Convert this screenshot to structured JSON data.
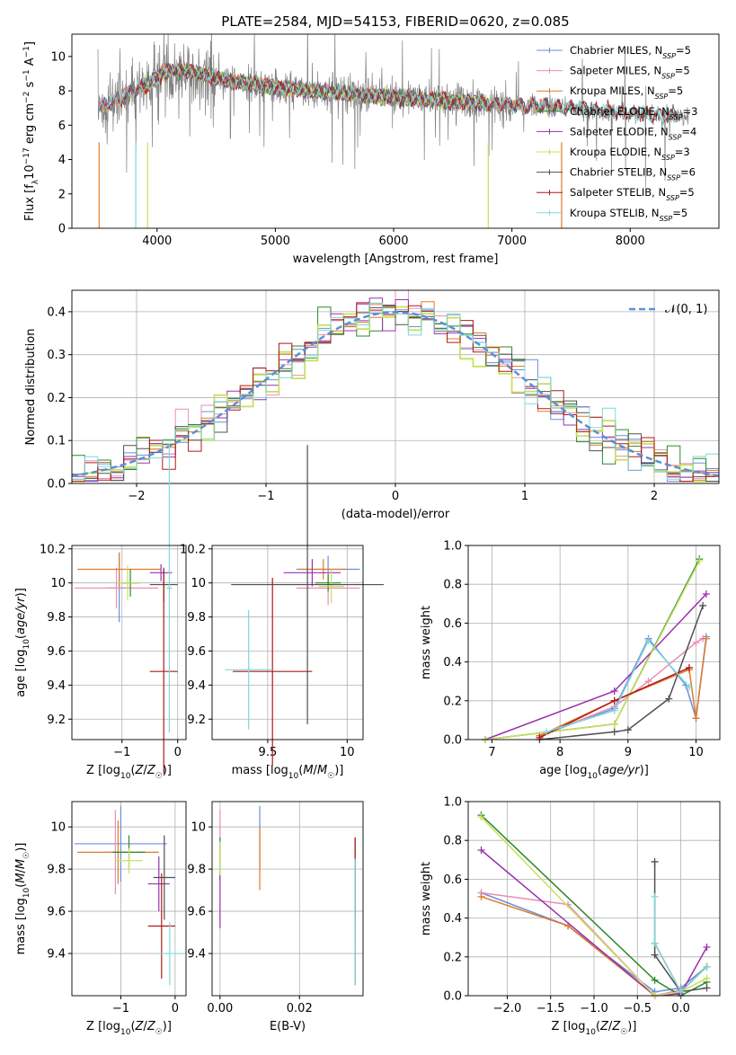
{
  "title": "PLATE=2584, MJD=54153, FIBERID=0620, z=0.085",
  "colors": {
    "Chabrier MILES": "#6a8fd8",
    "Salpeter MILES": "#e88fb8",
    "Kroupa MILES": "#e07a2a",
    "Chabrier ELODIE": "#2a8a2a",
    "Salpeter ELODIE": "#9b30b0",
    "Kroupa ELODIE": "#c8e060",
    "Chabrier STELIB": "#505050",
    "Salpeter STELIB": "#b01818",
    "Kroupa STELIB": "#80d8d8"
  },
  "chart_data": [
    {
      "id": "spectrum",
      "type": "line",
      "xlabel": "wavelength [Angstrom, rest frame]",
      "ylabel": "Flux [f_λ10^-17 erg cm^-2 s^-1 A^-1]",
      "xlim": [
        3280,
        8750
      ],
      "ylim": [
        0,
        11.3
      ],
      "xticks": [
        4000,
        5000,
        6000,
        7000,
        8000
      ],
      "yticks": [
        0,
        2,
        4,
        6,
        8,
        10
      ],
      "legend_position": "top-right",
      "legend": [
        {
          "model": "Chabrier MILES",
          "nssp": "5"
        },
        {
          "model": "Salpeter MILES",
          "nssp": "5"
        },
        {
          "model": "Kroupa MILES",
          "nssp": "5"
        },
        {
          "model": "Chabrier ELODIE",
          "nssp": "3"
        },
        {
          "model": "Salpeter ELODIE",
          "nssp": "4"
        },
        {
          "model": "Kroupa ELODIE",
          "nssp": "3"
        },
        {
          "model": "Chabrier STELIB",
          "nssp": "6"
        },
        {
          "model": "Salpeter STELIB",
          "nssp": "5"
        },
        {
          "model": "Kroupa STELIB",
          "nssp": "5"
        }
      ],
      "continuum": {
        "wavelength": [
          3500,
          3700,
          3900,
          4100,
          4300,
          4600,
          5000,
          5500,
          6000,
          6500,
          7000,
          7500,
          8000,
          8500
        ],
        "flux": [
          7.0,
          7.6,
          8.3,
          9.2,
          9.1,
          8.6,
          8.2,
          7.9,
          7.6,
          7.4,
          7.2,
          7.0,
          6.7,
          6.5
        ]
      }
    },
    {
      "id": "residuals",
      "type": "bar",
      "xlabel": "(data-model)/error",
      "ylabel": "Normed distribution",
      "xlim": [
        -2.5,
        2.5
      ],
      "ylim": [
        0,
        0.45
      ],
      "xticks": [
        -2,
        -1,
        0,
        1,
        2
      ],
      "yticks": [
        0.0,
        0.1,
        0.2,
        0.3,
        0.4
      ],
      "legend_position": "top-right",
      "normal_label": "𝒩(0, 1)",
      "normal_color": "#5b8fd8"
    },
    {
      "id": "age-Z",
      "type": "scatter",
      "xlabel": "Z [log₁₀(Z/Z☉)]",
      "ylabel": "age  [log₁₀(age/yr)]",
      "xlim": [
        -1.9,
        0.15
      ],
      "ylim": [
        9.08,
        10.22
      ],
      "xticks": [
        -1,
        0
      ],
      "yticks": [
        9.2,
        9.4,
        9.6,
        9.8,
        10.0,
        10.2
      ],
      "points": [
        {
          "model": "Chabrier MILES",
          "x": -1.05,
          "xerr": 0.2,
          "y": 9.97,
          "yerr": 0.2
        },
        {
          "model": "Salpeter MILES",
          "x": -1.1,
          "xerr": 0.75,
          "y": 9.97,
          "yerr": 0.12
        },
        {
          "model": "Kroupa MILES",
          "x": -1.05,
          "xerr": 0.75,
          "y": 10.08,
          "yerr": 0.1
        },
        {
          "model": "Chabrier ELODIE",
          "x": -0.85,
          "xerr": 0.15,
          "y": 10.0,
          "yerr": 0.08
        },
        {
          "model": "Salpeter ELODIE",
          "x": -0.3,
          "xerr": 0.2,
          "y": 10.06,
          "yerr": 0.05
        },
        {
          "model": "Kroupa ELODIE",
          "x": -0.9,
          "xerr": 0.2,
          "y": 10.0,
          "yerr": 0.1
        },
        {
          "model": "Chabrier STELIB",
          "x": -0.25,
          "xerr": 0.25,
          "y": 9.99,
          "yerr": 0.1
        },
        {
          "model": "Salpeter STELIB",
          "x": -0.25,
          "xerr": 0.25,
          "y": 9.48,
          "yerr": 0.6
        },
        {
          "model": "Kroupa STELIB",
          "x": -0.15,
          "xerr": 0.05,
          "y": 9.97,
          "yerr": 0.85
        }
      ]
    },
    {
      "id": "age-mass",
      "type": "scatter",
      "xlabel": "mass [log₁₀(M/M☉)]",
      "ylabel": "",
      "xlim": [
        9.15,
        10.1
      ],
      "ylim": [
        9.08,
        10.22
      ],
      "xticks": [
        9.5,
        10.0
      ],
      "yticks": [
        9.2,
        9.4,
        9.6,
        9.8,
        10.0,
        10.2
      ],
      "points": [
        {
          "model": "Chabrier MILES",
          "x": 9.88,
          "xerr": 0.2,
          "y": 10.08,
          "yerr": 0.08
        },
        {
          "model": "Salpeter MILES",
          "x": 9.88,
          "xerr": 0.2,
          "y": 9.97,
          "yerr": 0.1
        },
        {
          "model": "Kroupa MILES",
          "x": 9.85,
          "xerr": 0.15,
          "y": 10.08,
          "yerr": 0.06
        },
        {
          "model": "Chabrier ELODIE",
          "x": 9.88,
          "xerr": 0.08,
          "y": 10.0,
          "yerr": 0.05
        },
        {
          "model": "Salpeter ELODIE",
          "x": 9.78,
          "xerr": 0.18,
          "y": 10.06,
          "yerr": 0.08
        },
        {
          "model": "Kroupa ELODIE",
          "x": 9.9,
          "xerr": 0.08,
          "y": 9.98,
          "yerr": 0.1
        },
        {
          "model": "Chabrier STELIB",
          "x": 9.75,
          "xerr": 0.48,
          "y": 9.99,
          "yerr": 0.82
        },
        {
          "model": "Salpeter STELIB",
          "x": 9.53,
          "xerr": 0.25,
          "y": 9.48,
          "yerr": 0.55
        },
        {
          "model": "Kroupa STELIB",
          "x": 9.38,
          "xerr": 0.15,
          "y": 9.49,
          "yerr": 0.35
        }
      ]
    },
    {
      "id": "weight-age",
      "type": "line",
      "xlabel": "age  [log₁₀(age/yr)]",
      "ylabel": "mass weight",
      "xlim": [
        6.65,
        10.35
      ],
      "ylim": [
        0,
        1.0
      ],
      "xticks": [
        7,
        8,
        9,
        10
      ],
      "yticks": [
        0.0,
        0.2,
        0.4,
        0.6,
        0.8,
        1.0
      ],
      "series": [
        {
          "model": "Chabrier MILES",
          "x": [
            7.7,
            8.8,
            9.3,
            9.85,
            10.0,
            10.15
          ],
          "y": [
            0.02,
            0.16,
            0.52,
            0.28,
            0.11,
            0.53
          ]
        },
        {
          "model": "Salpeter MILES",
          "x": [
            7.7,
            8.8,
            9.3,
            10.0,
            10.1
          ],
          "y": [
            0.02,
            0.17,
            0.3,
            0.5,
            0.52
          ]
        },
        {
          "model": "Kroupa MILES",
          "x": [
            7.7,
            8.8,
            9.9,
            10.0,
            10.15
          ],
          "y": [
            0.02,
            0.2,
            0.36,
            0.11,
            0.52
          ]
        },
        {
          "model": "Chabrier ELODIE",
          "x": [
            6.9,
            8.8,
            10.05
          ],
          "y": [
            0.0,
            0.08,
            0.93
          ]
        },
        {
          "model": "Salpeter ELODIE",
          "x": [
            6.9,
            8.8,
            10.15
          ],
          "y": [
            0.0,
            0.25,
            0.75
          ]
        },
        {
          "model": "Kroupa ELODIE",
          "x": [
            6.9,
            8.8,
            10.05
          ],
          "y": [
            0.0,
            0.08,
            0.92
          ]
        },
        {
          "model": "Chabrier STELIB",
          "x": [
            7.7,
            8.8,
            9.0,
            9.6,
            10.1
          ],
          "y": [
            0.0,
            0.04,
            0.05,
            0.21,
            0.69
          ]
        },
        {
          "model": "Salpeter STELIB",
          "x": [
            7.7,
            8.8,
            9.9
          ],
          "y": [
            0.01,
            0.2,
            0.37
          ]
        },
        {
          "model": "Kroupa STELIB",
          "x": [
            7.8,
            8.8,
            9.3,
            9.9
          ],
          "y": [
            0.04,
            0.15,
            0.51,
            0.27
          ]
        }
      ]
    },
    {
      "id": "mass-Z",
      "type": "scatter",
      "xlabel": "Z [log₁₀(Z/Z☉)]",
      "ylabel": "mass [log₁₀(M/M☉)]",
      "xlim": [
        -1.9,
        0.2
      ],
      "ylim": [
        9.2,
        10.12
      ],
      "xticks": [
        -1,
        0
      ],
      "yticks": [
        9.4,
        9.6,
        9.8,
        10.0
      ],
      "points": [
        {
          "model": "Chabrier MILES",
          "x": -1.0,
          "xerr": 0.85,
          "y": 9.92,
          "yerr": 0.18
        },
        {
          "model": "Salpeter MILES",
          "x": -1.1,
          "xerr": 0.2,
          "y": 9.88,
          "yerr": 0.2
        },
        {
          "model": "Kroupa MILES",
          "x": -1.05,
          "xerr": 0.75,
          "y": 9.88,
          "yerr": 0.15
        },
        {
          "model": "Chabrier ELODIE",
          "x": -0.85,
          "xerr": 0.3,
          "y": 9.88,
          "yerr": 0.08
        },
        {
          "model": "Salpeter ELODIE",
          "x": -0.3,
          "xerr": 0.2,
          "y": 9.73,
          "yerr": 0.13
        },
        {
          "model": "Kroupa ELODIE",
          "x": -0.85,
          "xerr": 0.25,
          "y": 9.84,
          "yerr": 0.06
        },
        {
          "model": "Chabrier STELIB",
          "x": -0.2,
          "xerr": 0.2,
          "y": 9.76,
          "yerr": 0.2
        },
        {
          "model": "Salpeter STELIB",
          "x": -0.25,
          "xerr": 0.25,
          "y": 9.53,
          "yerr": 0.25
        },
        {
          "model": "Kroupa STELIB",
          "x": -0.1,
          "xerr": 0.25,
          "y": 9.4,
          "yerr": 0.15
        }
      ]
    },
    {
      "id": "mass-ebv",
      "type": "scatter",
      "xlabel": "E(B-V)",
      "ylabel": "",
      "xlim": [
        -0.002,
        0.036
      ],
      "ylim": [
        9.2,
        10.12
      ],
      "xticks": [
        0.0,
        0.02
      ],
      "yticks": [
        9.4,
        9.6,
        9.8,
        10.0
      ],
      "points": [
        {
          "model": "Chabrier MILES",
          "x": 0.01,
          "xerr": 0.0,
          "y": 9.95,
          "yerr": 0.15
        },
        {
          "model": "Salpeter MILES",
          "x": 0.0,
          "xerr": 0.0,
          "y": 9.95,
          "yerr": 0.13
        },
        {
          "model": "Kroupa MILES",
          "x": 0.01,
          "xerr": 0.0,
          "y": 9.85,
          "yerr": 0.15
        },
        {
          "model": "Chabrier ELODIE",
          "x": 0.0,
          "xerr": 0.0,
          "y": 9.85,
          "yerr": 0.1
        },
        {
          "model": "Salpeter ELODIE",
          "x": 0.0,
          "xerr": 0.0,
          "y": 9.65,
          "yerr": 0.13
        },
        {
          "model": "Kroupa ELODIE",
          "x": 0.0,
          "xerr": 0.0,
          "y": 9.85,
          "yerr": 0.08
        },
        {
          "model": "Chabrier STELIB",
          "x": 0.034,
          "xerr": 0.0,
          "y": 9.75,
          "yerr": 0.2
        },
        {
          "model": "Salpeter STELIB",
          "x": 0.034,
          "xerr": 0.0,
          "y": 9.6,
          "yerr": 0.35
        },
        {
          "model": "Kroupa STELIB",
          "x": 0.034,
          "xerr": 0.0,
          "y": 9.55,
          "yerr": 0.3
        }
      ]
    },
    {
      "id": "weight-Z",
      "type": "line",
      "xlabel": "Z [log₁₀(Z/Z☉)]",
      "ylabel": "mass weight",
      "xlim": [
        -2.45,
        0.45
      ],
      "ylim": [
        0,
        1.0
      ],
      "xticks": [
        -2.0,
        -1.5,
        -1.0,
        -0.5,
        0.0
      ],
      "yticks": [
        0.0,
        0.2,
        0.4,
        0.6,
        0.8,
        1.0
      ],
      "series": [
        {
          "model": "Chabrier MILES",
          "x": [
            -2.3,
            -1.3,
            -0.3,
            0.0,
            0.3
          ],
          "y": [
            0.53,
            0.36,
            0.02,
            0.04,
            0.15
          ]
        },
        {
          "model": "Salpeter MILES",
          "x": [
            -2.3,
            -1.3,
            -0.3,
            0.0
          ],
          "y": [
            0.53,
            0.47,
            0.0,
            0.03
          ]
        },
        {
          "model": "Kroupa MILES",
          "x": [
            -2.3,
            -1.3,
            -0.3,
            0.0
          ],
          "y": [
            0.51,
            0.36,
            0.0,
            0.02
          ]
        },
        {
          "model": "Chabrier ELODIE",
          "x": [
            -2.3,
            -0.3,
            0.0,
            0.3
          ],
          "y": [
            0.93,
            0.08,
            0.0,
            0.07
          ]
        },
        {
          "model": "Salpeter ELODIE",
          "x": [
            -2.3,
            -0.3,
            0.0,
            0.3
          ],
          "y": [
            0.75,
            0.0,
            0.01,
            0.25
          ]
        },
        {
          "model": "Kroupa ELODIE",
          "x": [
            -2.3,
            -0.3,
            0.0,
            0.3
          ],
          "y": [
            0.92,
            0.0,
            0.02,
            0.09
          ]
        },
        {
          "model": "Chabrier STELIB",
          "x": [
            -0.3,
            -0.3,
            0.0,
            0.3
          ],
          "y": [
            0.69,
            0.21,
            0.02,
            0.04
          ]
        },
        {
          "model": "Salpeter STELIB",
          "x": [
            -0.3,
            0.0,
            0.3
          ],
          "y": [
            0.27,
            0.02,
            0.15
          ]
        },
        {
          "model": "Kroupa STELIB",
          "x": [
            -0.3,
            -0.3,
            0.0,
            0.3
          ],
          "y": [
            0.51,
            0.27,
            0.02,
            0.15
          ]
        }
      ]
    }
  ]
}
